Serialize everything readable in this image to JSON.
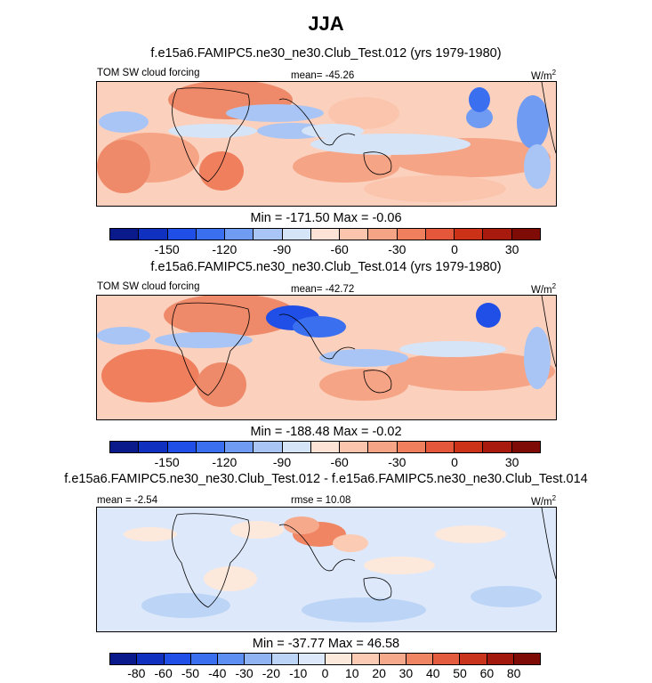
{
  "page_title": "JJA",
  "panels": [
    {
      "title": "f.e15a6.FAMIPC5.ne30_ne30.Club_Test.012 (yrs 1979-1980)",
      "left_label": "TOM SW cloud forcing",
      "center_label": "mean= -45.26",
      "units": "W/m",
      "units_sup": "2",
      "minmax": "Min = -171.50 Max =  -0.06",
      "colorbar_ticks": [
        "-150",
        "-120",
        "-90",
        "-60",
        "-30",
        "0",
        "30"
      ],
      "colorbar_colors": [
        "#0a1a8a",
        "#1030c0",
        "#1f4fe6",
        "#3a6ff0",
        "#6f9bf2",
        "#a8c5f5",
        "#d6e4f8",
        "#fde3d6",
        "#fbc5ad",
        "#f6a486",
        "#f07f5e",
        "#e5573a",
        "#cc3218",
        "#a81a0d",
        "#7f0b07"
      ]
    },
    {
      "title": "f.e15a6.FAMIPC5.ne30_ne30.Club_Test.014 (yrs 1979-1980)",
      "left_label": "TOM SW cloud forcing",
      "center_label": "mean= -42.72",
      "units": "W/m",
      "units_sup": "2",
      "minmax": "Min = -188.48 Max =  -0.02",
      "colorbar_ticks": [
        "-150",
        "-120",
        "-90",
        "-60",
        "-30",
        "0",
        "30"
      ],
      "colorbar_colors": [
        "#0a1a8a",
        "#1030c0",
        "#1f4fe6",
        "#3a6ff0",
        "#6f9bf2",
        "#a8c5f5",
        "#d6e4f8",
        "#fde3d6",
        "#fbc5ad",
        "#f6a486",
        "#f07f5e",
        "#e5573a",
        "#cc3218",
        "#a81a0d",
        "#7f0b07"
      ]
    },
    {
      "title": "f.e15a6.FAMIPC5.ne30_ne30.Club_Test.012 - f.e15a6.FAMIPC5.ne30_ne30.Club_Test.014",
      "left_label": "mean =  -2.54",
      "center_label": "rmse =  10.08",
      "units": "W/m",
      "units_sup": "2",
      "minmax": "Min = -37.77 Max =  46.58",
      "colorbar_ticks": [
        "-80",
        "-60",
        "-50",
        "-40",
        "-30",
        "-20",
        "-10",
        "0",
        "10",
        "20",
        "30",
        "40",
        "50",
        "60",
        "80"
      ],
      "colorbar_colors": [
        "#0a1a8a",
        "#1030c0",
        "#1f4fe6",
        "#3a6ff0",
        "#5d8ef1",
        "#8fb3f3",
        "#bcd4f6",
        "#dde9fa",
        "#fde8dc",
        "#fbcbb4",
        "#f7a98b",
        "#f08563",
        "#e35c3d",
        "#c9341c",
        "#a3180c",
        "#7f0b07"
      ]
    }
  ]
}
